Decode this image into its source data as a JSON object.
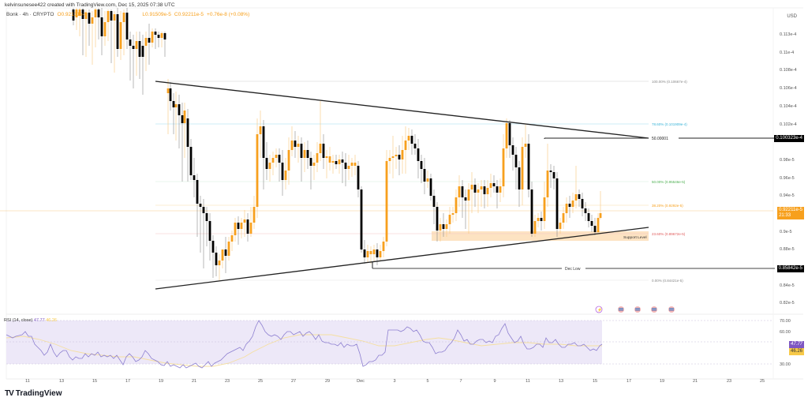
{
  "header": {
    "attribution": "kelvinsunesee422 created with TradingView.com, Dec 15, 2025 07:38 UTC",
    "symbol": "Bonk · 4h · CRYPTO",
    "open_label": "O",
    "open": "0.92131e-5",
    "high_label": "H",
    "high": "0.93486e-5",
    "low_label": "L",
    "low": "0.91509e-5",
    "close_label": "C",
    "close": "0.92211e-5",
    "change": "+0.76e-8 (+0.08%)"
  },
  "price_axis": {
    "currency": "USD",
    "ticks": [
      "0.113e-4",
      "0.11e-4",
      "0.108e-4",
      "0.106e-4",
      "0.104e-4",
      "0.102e-4",
      "0.98e-5",
      "0.96e-5",
      "0.94e-5",
      "0.9e-5",
      "0.88e-5",
      "0.84e-5",
      "0.82e-5"
    ],
    "tags": {
      "resistance": {
        "value": "0.100323e-4",
        "color": "#000000"
      },
      "current": {
        "value": "0.92211e-5",
        "countdown": "21:33",
        "color": "#f7a01d"
      },
      "dec_low": {
        "value": "0.85842e-5",
        "color": "#000000"
      }
    }
  },
  "time_axis": {
    "ticks": [
      "11",
      "13",
      "15",
      "17",
      "19",
      "21",
      "23",
      "25",
      "27",
      "29",
      "Dec",
      "3",
      "5",
      "7",
      "9",
      "11",
      "13",
      "15",
      "17",
      "19",
      "21",
      "23",
      "25"
    ]
  },
  "annotations": {
    "fib_100": "100.00% (0.10667e-4)",
    "fib_786": "78.60% (0.101909e-4)",
    "fib_50": "50.00% (0.95546e-5)",
    "fib_382": "38.20% (0.9292e-5)",
    "fib_236": "23.60% (0.89672e-5)",
    "fib_0": "0.00% (0.84421e-5)",
    "resistance_label": "50.00001",
    "support_label": "Support Level",
    "dec_low_label": "Dec Low"
  },
  "rsi": {
    "label": "RSI (14, close)",
    "value": "47.77",
    "ma_value": "46.26",
    "ticks": [
      "70.00",
      "60.00",
      "50.00",
      "30.00"
    ],
    "tag_rsi": "47.77",
    "tag_ma": "46.26",
    "line_color": "#7e57c2",
    "ma_color": "#f7c948"
  },
  "events": {
    "icons": [
      "lightning-event",
      "us-flag-event",
      "us-flag-event",
      "us-flag-event",
      "us-flag-event"
    ]
  },
  "branding": {
    "logo_mark": "TV",
    "name": "TradingView"
  },
  "colors": {
    "bull": "#f7a01d",
    "bear": "#000000",
    "support_zone": "#fde3c2",
    "rsi_bg": "#ede8f8"
  },
  "chart_data": {
    "type": "candlestick",
    "title": "Bonk · 4h · CRYPTO",
    "ylabel": "USD",
    "ylim": [
      8.1e-06,
      1.155e-05
    ],
    "pattern": "symmetrical triangle",
    "x_range": [
      "Nov 10",
      "Dec 26"
    ],
    "last_close": 9.2211e-06,
    "levels": [
      {
        "name": "Fib 100%",
        "value": 1.0667e-05
      },
      {
        "name": "Fib 78.6%",
        "value": 1.01909e-05
      },
      {
        "name": "Resistance",
        "value": 1.00323e-05
      },
      {
        "name": "Fib 50%",
        "value": 9.5546e-06
      },
      {
        "name": "Fib 38.2%",
        "value": 9.292e-06
      },
      {
        "name": "Fib 23.6%",
        "value": 8.9672e-06
      },
      {
        "name": "Dec Low",
        "value": 8.5842e-06
      },
      {
        "name": "Fib 0%",
        "value": 8.4421e-06
      }
    ],
    "rsi": {
      "period": 14,
      "last": 47.77,
      "ma_last": 46.26,
      "ylim": [
        30,
        70
      ]
    }
  }
}
